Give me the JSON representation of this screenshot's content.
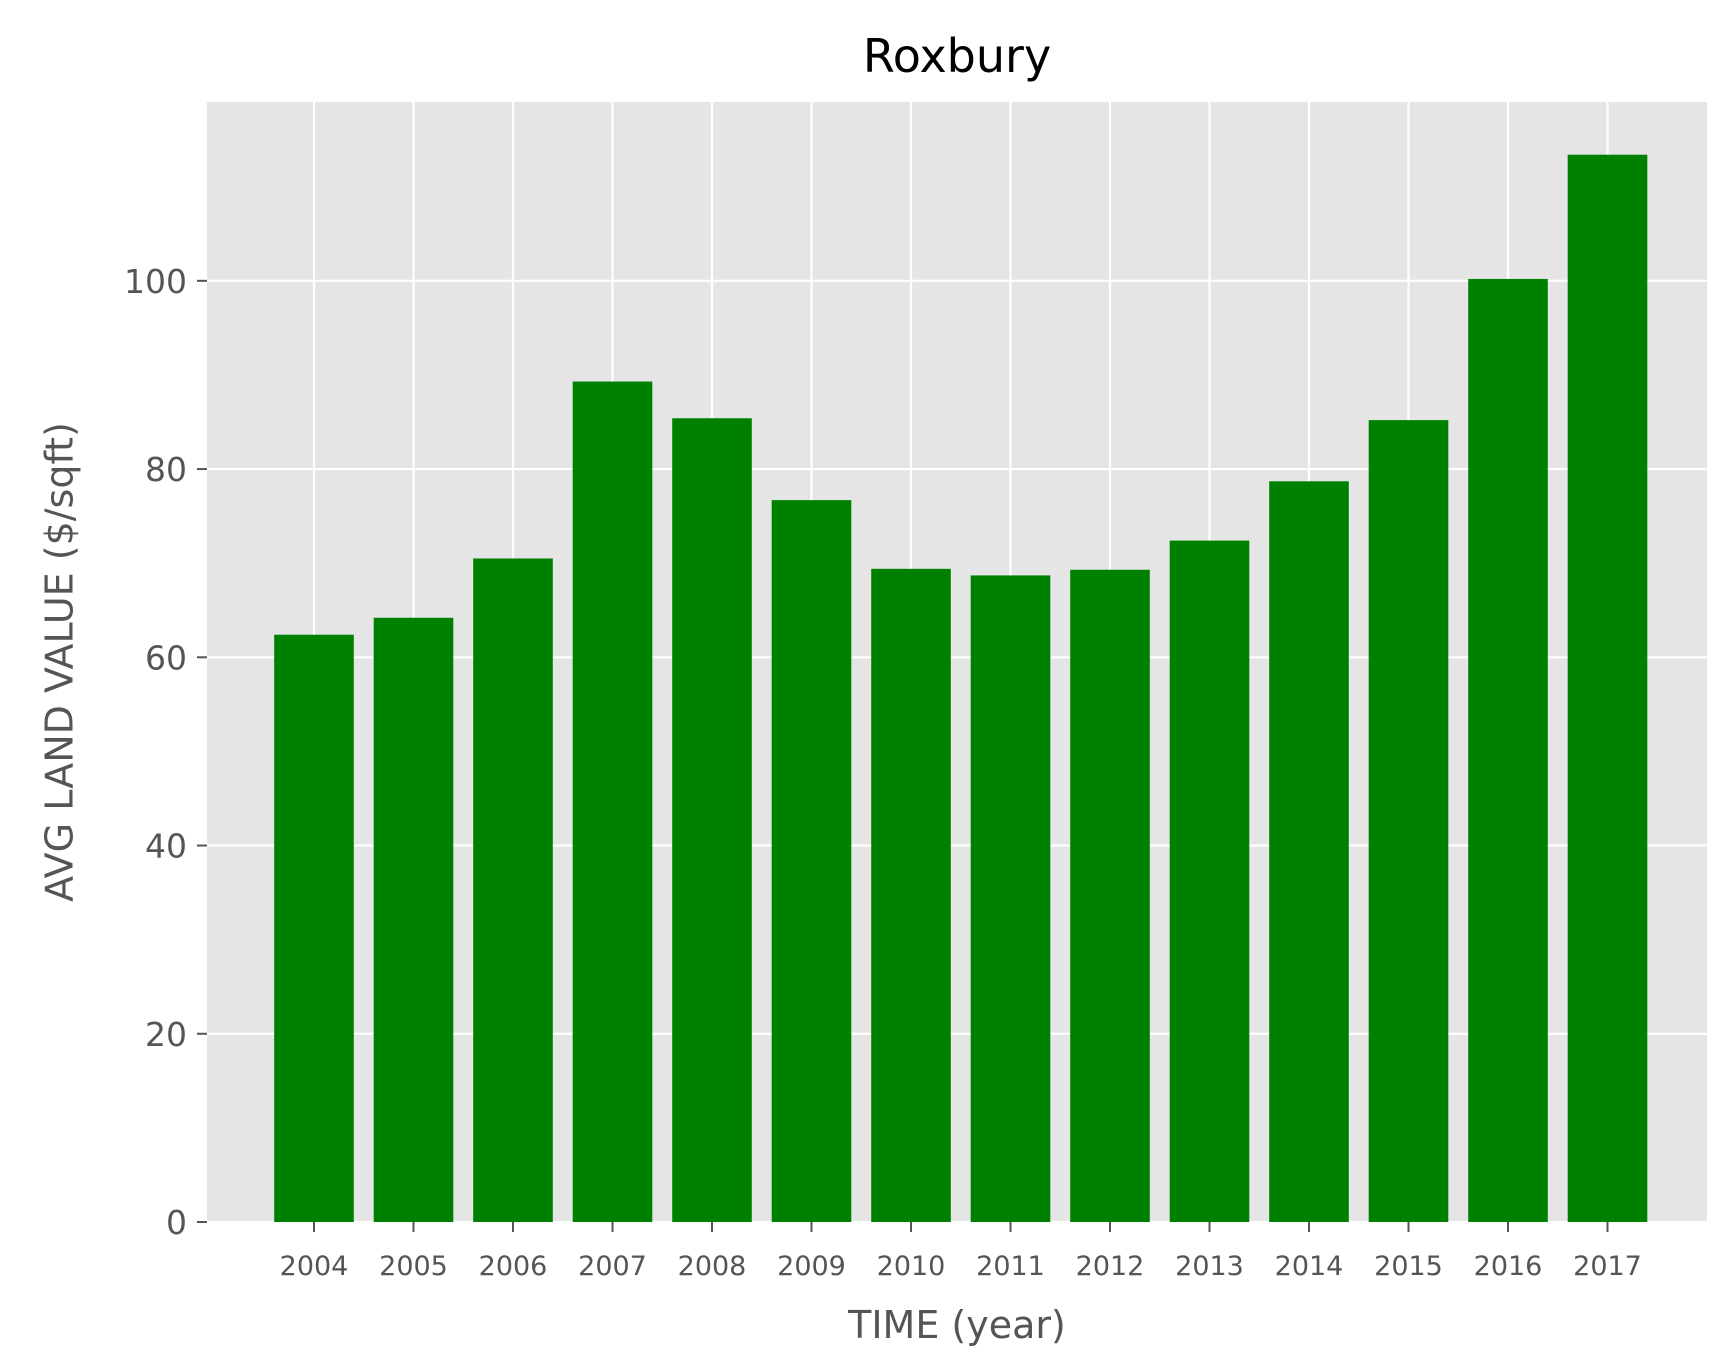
{
  "chart_data": {
    "type": "bar",
    "title": "Roxbury",
    "xlabel": "TIME (year)",
    "ylabel": "AVG LAND VALUE ($/sqft)",
    "categories": [
      "2004",
      "2005",
      "2006",
      "2007",
      "2008",
      "2009",
      "2010",
      "2011",
      "2012",
      "2013",
      "2014",
      "2015",
      "2016",
      "2017"
    ],
    "values": [
      62.4,
      64.2,
      70.5,
      89.3,
      85.4,
      76.7,
      69.4,
      68.7,
      69.3,
      72.4,
      78.7,
      85.2,
      100.2,
      113.4
    ],
    "ylim": [
      0,
      119
    ],
    "yticks": [
      0,
      20,
      40,
      60,
      80,
      100
    ],
    "grid": true,
    "colors": {
      "bar": "#008000",
      "plot_background": "#e5e5e5",
      "grid": "#ffffff"
    }
  }
}
